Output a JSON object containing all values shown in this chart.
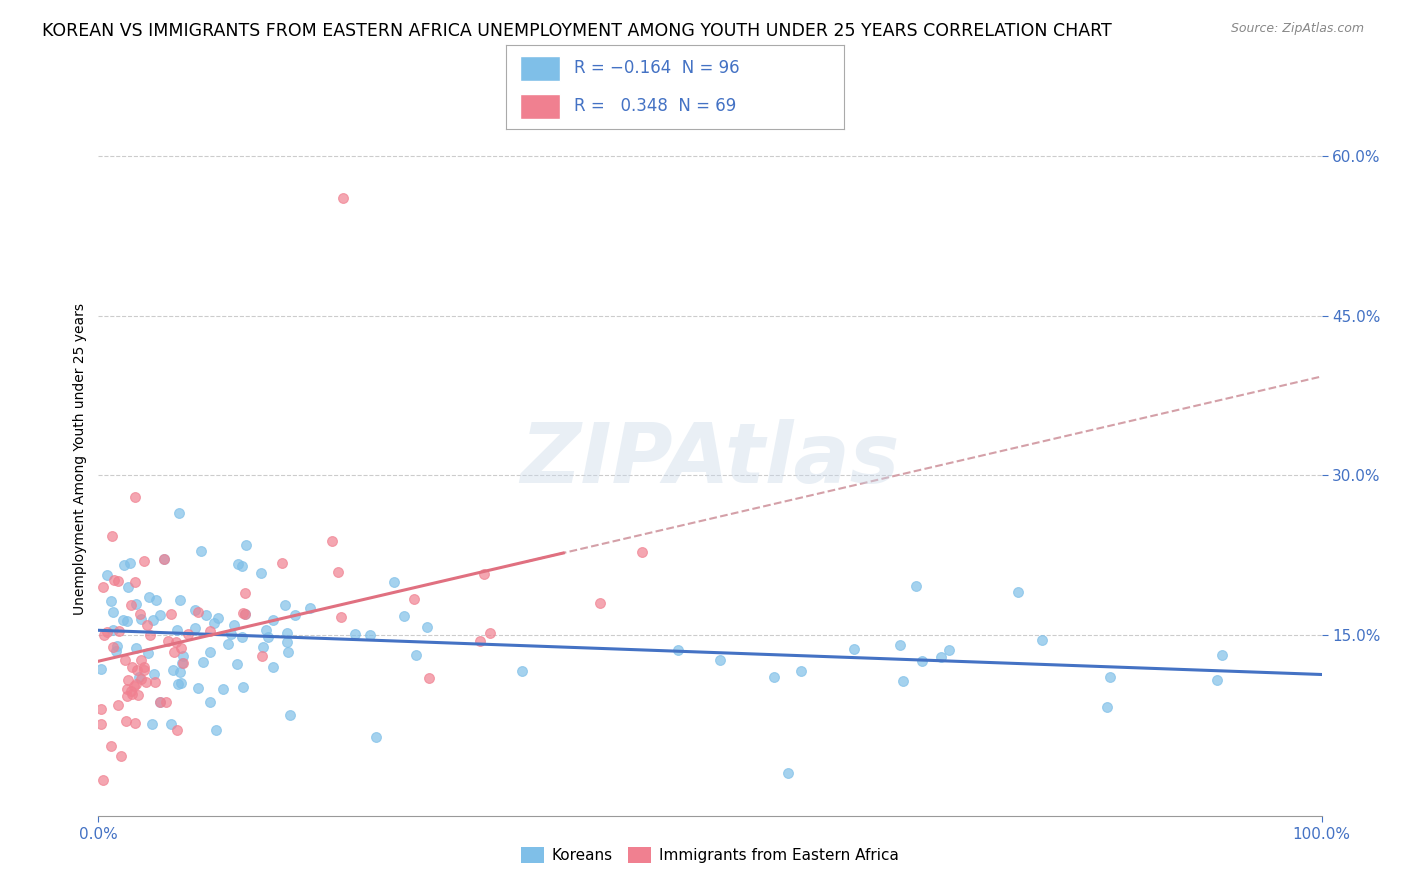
{
  "title": "KOREAN VS IMMIGRANTS FROM EASTERN AFRICA UNEMPLOYMENT AMONG YOUTH UNDER 25 YEARS CORRELATION CHART",
  "source": "Source: ZipAtlas.com",
  "ylabel": "Unemployment Among Youth under 25 years",
  "yticks_labels": [
    "15.0%",
    "30.0%",
    "45.0%",
    "60.0%"
  ],
  "ytick_vals": [
    0.15,
    0.3,
    0.45,
    0.6
  ],
  "ymin": -0.02,
  "ymax": 0.65,
  "xmin": 0.0,
  "xmax": 1.0,
  "watermark": "ZIPAtlas",
  "koreans_color": "#7fbfe8",
  "immigrants_color": "#f08090",
  "line_korean_color": "#4472c4",
  "line_immigrant_color": "#e07080",
  "line_trend_color": "#d0a0a8",
  "legend_label_korean": "Koreans",
  "legend_label_immigrant": "Immigrants from Eastern Africa",
  "korean_R": -0.164,
  "korean_N": 96,
  "immigrant_R": 0.348,
  "immigrant_N": 69,
  "background_color": "#ffffff",
  "grid_color": "#cccccc",
  "title_fontsize": 12.5,
  "axis_label_fontsize": 10,
  "tick_fontsize": 11,
  "legend_fontsize": 12,
  "tick_color": "#4472c4"
}
